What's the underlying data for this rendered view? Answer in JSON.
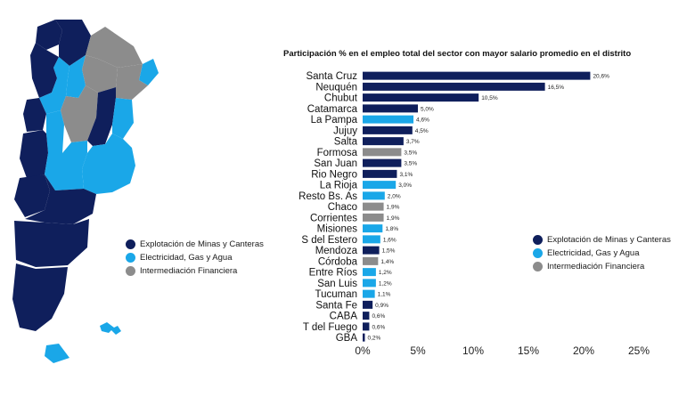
{
  "colors": {
    "mining": "#0f1f5c",
    "utilities": "#1aa7e8",
    "finance": "#8c8c8c"
  },
  "map_legend": [
    {
      "label": "Explotación de Minas y Canteras",
      "color": "#0f1f5c"
    },
    {
      "label": "Electricidad, Gas y Agua",
      "color": "#1aa7e8"
    },
    {
      "label": "Intermediación Financiera",
      "color": "#8c8c8c"
    }
  ],
  "chart_data": {
    "type": "bar",
    "orientation": "horizontal",
    "title": "Participación % en el empleo total del sector con mayor salario promedio en el distrito",
    "xlim": [
      0,
      25
    ],
    "xticks": [
      "0%",
      "5%",
      "10%",
      "15%",
      "20%",
      "25%"
    ],
    "xtick_values": [
      0,
      5,
      10,
      15,
      20,
      25
    ],
    "grid": false,
    "legend_position": "right",
    "legend": [
      {
        "label": "Explotación de Minas y Canteras",
        "color": "#0f1f5c"
      },
      {
        "label": "Electricidad, Gas y Agua",
        "color": "#1aa7e8"
      },
      {
        "label": "Intermediación Financiera",
        "color": "#8c8c8c"
      }
    ],
    "bars": [
      {
        "category": "Santa Cruz",
        "value": 20.6,
        "label": "20,6%",
        "sector": "mining"
      },
      {
        "category": "Neuquén",
        "value": 16.5,
        "label": "16,5%",
        "sector": "mining"
      },
      {
        "category": "Chubut",
        "value": 10.5,
        "label": "10,5%",
        "sector": "mining"
      },
      {
        "category": "Catamarca",
        "value": 5.0,
        "label": "5,0%",
        "sector": "mining"
      },
      {
        "category": "La Pampa",
        "value": 4.6,
        "label": "4,6%",
        "sector": "utilities"
      },
      {
        "category": "Jujuy",
        "value": 4.5,
        "label": "4,5%",
        "sector": "mining"
      },
      {
        "category": "Salta",
        "value": 3.7,
        "label": "3,7%",
        "sector": "mining"
      },
      {
        "category": "Formosa",
        "value": 3.5,
        "label": "3,5%",
        "sector": "finance"
      },
      {
        "category": "San Juan",
        "value": 3.5,
        "label": "3,5%",
        "sector": "mining"
      },
      {
        "category": "Rio Negro",
        "value": 3.1,
        "label": "3,1%",
        "sector": "mining"
      },
      {
        "category": "La Rioja",
        "value": 3.0,
        "label": "3,0%",
        "sector": "utilities"
      },
      {
        "category": "Resto Bs. As",
        "value": 2.0,
        "label": "2,0%",
        "sector": "utilities"
      },
      {
        "category": "Chaco",
        "value": 1.9,
        "label": "1,9%",
        "sector": "finance"
      },
      {
        "category": "Corrientes",
        "value": 1.9,
        "label": "1,9%",
        "sector": "finance"
      },
      {
        "category": "Misiones",
        "value": 1.8,
        "label": "1,8%",
        "sector": "utilities"
      },
      {
        "category": "S del Estero",
        "value": 1.6,
        "label": "1,6%",
        "sector": "utilities"
      },
      {
        "category": "Mendoza",
        "value": 1.5,
        "label": "1,5%",
        "sector": "mining"
      },
      {
        "category": "Córdoba",
        "value": 1.4,
        "label": "1,4%",
        "sector": "finance"
      },
      {
        "category": "Entre Ríos",
        "value": 1.2,
        "label": "1,2%",
        "sector": "utilities"
      },
      {
        "category": "San Luis",
        "value": 1.2,
        "label": "1,2%",
        "sector": "utilities"
      },
      {
        "category": "Tucuman",
        "value": 1.1,
        "label": "1,1%",
        "sector": "utilities"
      },
      {
        "category": "Santa Fe",
        "value": 0.9,
        "label": "0,9%",
        "sector": "mining"
      },
      {
        "category": "CABA",
        "value": 0.6,
        "label": "0,6%",
        "sector": "mining"
      },
      {
        "category": "T del Fuego",
        "value": 0.6,
        "label": "0,6%",
        "sector": "mining"
      },
      {
        "category": "GBA",
        "value": 0.2,
        "label": "0,2%",
        "sector": "mining"
      }
    ]
  }
}
